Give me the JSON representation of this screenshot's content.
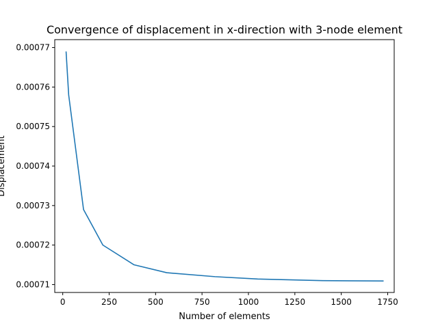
{
  "chart_data": {
    "type": "line",
    "title": "Convergence of displacement in x-direction with 3-node element",
    "xlabel": "Number of elements",
    "ylabel": "Displacement",
    "xlim": [
      -43,
      1785
    ],
    "ylim": [
      0.000708,
      0.000772
    ],
    "xticks": [
      0,
      250,
      500,
      750,
      1000,
      1250,
      1500,
      1750
    ],
    "xtick_labels": [
      "0",
      "250",
      "500",
      "750",
      "1000",
      "1250",
      "1500",
      "1750"
    ],
    "yticks": [
      0.00071,
      0.00072,
      0.00073,
      0.00074,
      0.00075,
      0.00076,
      0.00077
    ],
    "ytick_labels": [
      "0.00071",
      "0.00072",
      "0.00073",
      "0.00074",
      "0.00075",
      "0.00076",
      "0.00077"
    ],
    "grid": false,
    "series": [
      {
        "color": "#1f77b4",
        "x": [
          18,
          32,
          112,
          216,
          384,
          560,
          820,
          1050,
          1400,
          1728
        ],
        "y": [
          0.000769,
          0.000758,
          0.000729,
          0.00072,
          0.000715,
          0.000713,
          0.000712,
          0.0007114,
          0.000711,
          0.0007109
        ]
      }
    ]
  }
}
